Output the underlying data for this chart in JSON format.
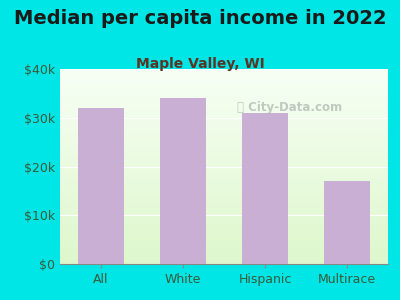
{
  "title": "Median per capita income in 2022",
  "subtitle": "Maple Valley, WI",
  "categories": [
    "All",
    "White",
    "Hispanic",
    "Multirace"
  ],
  "values": [
    32000,
    34000,
    31000,
    17000
  ],
  "bar_color": "#c9afd4",
  "background_color": "#00e5e5",
  "title_color": "#1a1a1a",
  "subtitle_color": "#5a3525",
  "tick_label_color": "#3a5a3a",
  "ylim": [
    0,
    40000
  ],
  "yticks": [
    0,
    10000,
    20000,
    30000,
    40000
  ],
  "ytick_labels": [
    "$0",
    "$10k",
    "$20k",
    "$30k",
    "$40k"
  ],
  "watermark": "City-Data.com",
  "title_fontsize": 14,
  "subtitle_fontsize": 10,
  "tick_fontsize": 9,
  "bar_width": 0.55
}
